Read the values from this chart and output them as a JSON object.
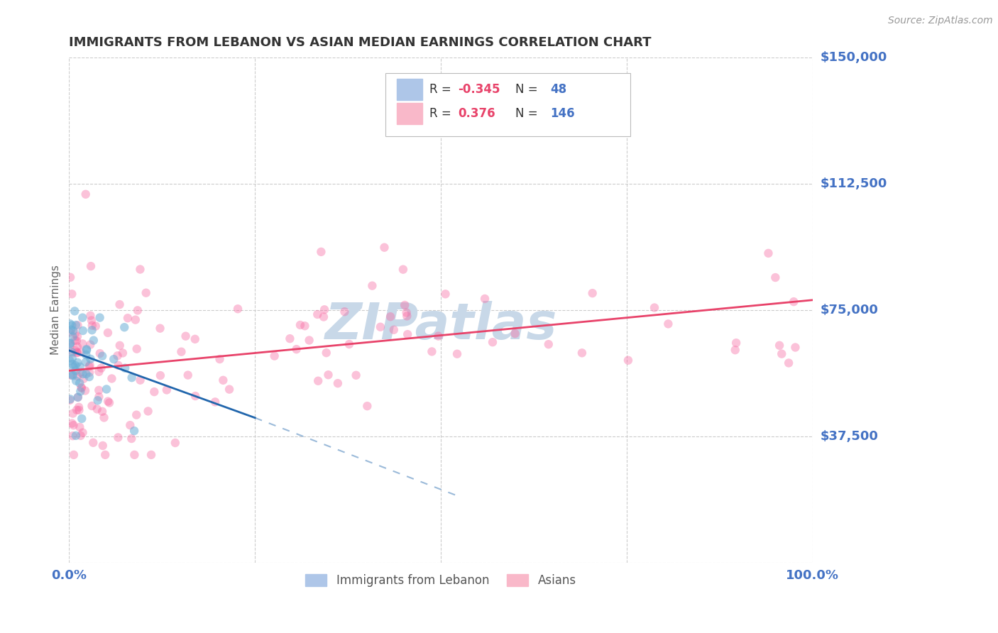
{
  "title": "IMMIGRANTS FROM LEBANON VS ASIAN MEDIAN EARNINGS CORRELATION CHART",
  "source": "Source: ZipAtlas.com",
  "ylabel": "Median Earnings",
  "xlim": [
    0,
    1.0
  ],
  "ylim": [
    0,
    150000
  ],
  "yticks": [
    0,
    37500,
    75000,
    112500,
    150000
  ],
  "yticklabels": [
    "",
    "$37,500",
    "$75,000",
    "$112,500",
    "$150,000"
  ],
  "legend_labels": [
    "Immigrants from Lebanon",
    "Asians"
  ],
  "scatter_lebanon_color": "#6baed6",
  "scatter_lebanon_alpha": 0.55,
  "scatter_lebanon_size": 80,
  "scatter_asians_color": "#f768a1",
  "scatter_asians_alpha": 0.4,
  "scatter_asians_size": 80,
  "trend_lebanon_color": "#2166ac",
  "trend_asians_color": "#e8436a",
  "background_color": "#ffffff",
  "grid_color": "#cccccc",
  "title_color": "#333333",
  "axis_label_color": "#666666",
  "tick_color": "#4472c4",
  "watermark_color": "#c8d8e8",
  "figsize": [
    14.06,
    8.92
  ],
  "dpi": 100,
  "legend_box_color": "#aec6e8",
  "legend_box_color2": "#f9b8c9",
  "legend_R1": "-0.345",
  "legend_N1": "48",
  "legend_R2": "0.376",
  "legend_N2": "146",
  "legend_text_color": "#333333",
  "legend_val_color": "#e8436a",
  "legend_n_color": "#4472c4"
}
